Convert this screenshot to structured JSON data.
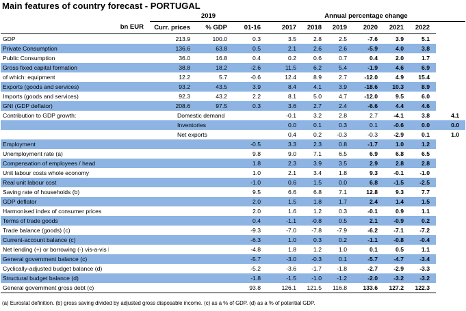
{
  "title": "Main features of country forecast - PORTUGAL",
  "header": {
    "year_group": "2019",
    "apc_group": "Annual percentage change",
    "col_bn": "bn EUR",
    "col_curr": "Curr. prices",
    "col_pct": "% GDP",
    "years": [
      "01-16",
      "2017",
      "2018",
      "2019",
      "2020",
      "2021",
      "2022"
    ]
  },
  "rows": [
    {
      "label": "GDP",
      "sub": "",
      "bn": "",
      "curr": "213.9",
      "pct": "100.0",
      "v": [
        "0.3",
        "3.5",
        "2.8",
        "2.5",
        "-7.6",
        "3.9",
        "5.1"
      ],
      "blue": false
    },
    {
      "label": "Private Consumption",
      "sub": "",
      "bn": "",
      "curr": "136.6",
      "pct": "63.8",
      "v": [
        "0.5",
        "2.1",
        "2.6",
        "2.6",
        "-5.9",
        "4.0",
        "3.8"
      ],
      "blue": true
    },
    {
      "label": "Public Consumption",
      "sub": "",
      "bn": "",
      "curr": "36.0",
      "pct": "16.8",
      "v": [
        "0.4",
        "0.2",
        "0.6",
        "0.7",
        "0.4",
        "2.0",
        "1.7"
      ],
      "blue": false
    },
    {
      "label": "Gross fixed capital formation",
      "sub": "",
      "bn": "",
      "curr": "38.8",
      "pct": "18.2",
      "v": [
        "-2.6",
        "11.5",
        "6.2",
        "5.4",
        "-1.9",
        "4.6",
        "6.9"
      ],
      "blue": true
    },
    {
      "label": "of which: equipment",
      "sub": "",
      "bn": "",
      "curr": "12.2",
      "pct": "5.7",
      "v": [
        "-0.6",
        "12.4",
        "8.9",
        "2.7",
        "-12.0",
        "4.9",
        "15.4"
      ],
      "blue": false
    },
    {
      "label": "Exports (goods and services)",
      "sub": "",
      "bn": "",
      "curr": "93.2",
      "pct": "43.5",
      "v": [
        "3.9",
        "8.4",
        "4.1",
        "3.9",
        "-18.6",
        "10.3",
        "8.9"
      ],
      "blue": true
    },
    {
      "label": "Imports (goods and services)",
      "sub": "",
      "bn": "",
      "curr": "92.3",
      "pct": "43.2",
      "v": [
        "2.2",
        "8.1",
        "5.0",
        "4.7",
        "-12.0",
        "9.5",
        "6.0"
      ],
      "blue": false
    },
    {
      "label": "GNI (GDP deflator)",
      "sub": "",
      "bn": "",
      "curr": "208.6",
      "pct": "97.5",
      "v": [
        "0.3",
        "3.6",
        "2.7",
        "2.4",
        "-6.6",
        "4.4",
        "4.6"
      ],
      "blue": true
    },
    {
      "label": "Contribution to GDP growth:",
      "sub": "Domestic demand",
      "bn": "",
      "curr": "",
      "pct": "",
      "v": [
        "-0.1",
        "3.2",
        "2.8",
        "2.7",
        "-4.1",
        "3.8",
        "4.1"
      ],
      "blue": false
    },
    {
      "label": "",
      "sub": "Inventories",
      "bn": "",
      "curr": "",
      "pct": "",
      "v": [
        "0.0",
        "0.1",
        "0.3",
        "0.1",
        "-0.6",
        "0.0",
        "0.0"
      ],
      "blue": true
    },
    {
      "label": "",
      "sub": "Net exports",
      "bn": "",
      "curr": "",
      "pct": "",
      "v": [
        "0.4",
        "0.2",
        "-0.3",
        "-0.3",
        "-2.9",
        "0.1",
        "1.0"
      ],
      "blue": false
    },
    {
      "label": "Employment",
      "sub": "",
      "bn": "",
      "curr": "",
      "pct": "",
      "v": [
        "-0.5",
        "3.3",
        "2.3",
        "0.8",
        "-1.7",
        "1.0",
        "1.2"
      ],
      "blue": true
    },
    {
      "label": "Unemployment rate (a)",
      "sub": "",
      "bn": "",
      "curr": "",
      "pct": "",
      "v": [
        "9.8",
        "9.0",
        "7.1",
        "6.5",
        "6.9",
        "6.8",
        "6.5"
      ],
      "blue": false
    },
    {
      "label": "Compensation of employees / head",
      "sub": "",
      "bn": "",
      "curr": "",
      "pct": "",
      "v": [
        "1.8",
        "2.3",
        "3.9",
        "3.5",
        "2.9",
        "2.8",
        "2.8"
      ],
      "blue": true
    },
    {
      "label": "Unit labour costs whole economy",
      "sub": "",
      "bn": "",
      "curr": "",
      "pct": "",
      "v": [
        "1.0",
        "2.1",
        "3.4",
        "1.8",
        "9.3",
        "-0.1",
        "-1.0"
      ],
      "blue": false
    },
    {
      "label": "Real unit labour cost",
      "sub": "",
      "bn": "",
      "curr": "",
      "pct": "",
      "v": [
        "-1.0",
        "0.6",
        "1.5",
        "0.0",
        "6.8",
        "-1.5",
        "-2.5"
      ],
      "blue": true
    },
    {
      "label": "Saving rate of households (b)",
      "sub": "",
      "bn": "",
      "curr": "",
      "pct": "",
      "v": [
        "9.5",
        "6.6",
        "6.8",
        "7.1",
        "12.8",
        "9.3",
        "7.7"
      ],
      "blue": false
    },
    {
      "label": "GDP deflator",
      "sub": "",
      "bn": "",
      "curr": "",
      "pct": "",
      "v": [
        "2.0",
        "1.5",
        "1.8",
        "1.7",
        "2.4",
        "1.4",
        "1.5"
      ],
      "blue": true
    },
    {
      "label": "Harmonised index of consumer prices",
      "sub": "",
      "bn": "",
      "curr": "",
      "pct": "",
      "v": [
        "2.0",
        "1.6",
        "1.2",
        "0.3",
        "-0.1",
        "0.9",
        "1.1"
      ],
      "blue": false
    },
    {
      "label": "Terms of trade goods",
      "sub": "",
      "bn": "",
      "curr": "",
      "pct": "",
      "v": [
        "0.4",
        "-1.1",
        "-0.8",
        "0.5",
        "2.1",
        "-0.9",
        "0.2"
      ],
      "blue": true
    },
    {
      "label": "Trade balance (goods) (c)",
      "sub": "",
      "bn": "",
      "curr": "",
      "pct": "",
      "v": [
        "-9.3",
        "-7.0",
        "-7.8",
        "-7.9",
        "-6.2",
        "-7.1",
        "-7.2"
      ],
      "blue": false
    },
    {
      "label": "Current-account balance (c)",
      "sub": "",
      "bn": "",
      "curr": "",
      "pct": "",
      "v": [
        "-6.3",
        "1.0",
        "0.3",
        "0.2",
        "-1.1",
        "-0.8",
        "-0.4"
      ],
      "blue": true
    },
    {
      "label": "Net lending (+) or borrowing (-) vis-a-vis ROW (c)",
      "sub": "",
      "bn": "",
      "curr": "",
      "pct": "",
      "v": [
        "-4.8",
        "1.8",
        "1.2",
        "1.0",
        "0.1",
        "0.5",
        "1.1"
      ],
      "blue": false
    },
    {
      "label": "General government balance (c)",
      "sub": "",
      "bn": "",
      "curr": "",
      "pct": "",
      "v": [
        "-5.7",
        "-3.0",
        "-0.3",
        "0.1",
        "-5.7",
        "-4.7",
        "-3.4"
      ],
      "blue": true
    },
    {
      "label": "Cyclically-adjusted budget balance (d)",
      "sub": "",
      "bn": "",
      "curr": "",
      "pct": "",
      "v": [
        "-5.2",
        "-3.6",
        "-1.7",
        "-1.8",
        "-2.7",
        "-2.9",
        "-3.3"
      ],
      "blue": false
    },
    {
      "label": "Structural budget balance (d)",
      "sub": "",
      "bn": "",
      "curr": "",
      "pct": "",
      "v": [
        "-1.8",
        "-1.5",
        "-1.0",
        "-1.2",
        "-2.0",
        "-3.2",
        "-3.2"
      ],
      "blue": true
    },
    {
      "label": "General government gross debt (c)",
      "sub": "",
      "bn": "",
      "curr": "",
      "pct": "",
      "v": [
        "93.8",
        "126.1",
        "121.5",
        "116.8",
        "133.6",
        "127.2",
        "122.3"
      ],
      "blue": false
    }
  ],
  "footnote": "(a) Eurostat definition.  (b) gross saving divided by adjusted gross disposable income.  (c) as a % of GDP.  (d) as a % of potential GDP."
}
